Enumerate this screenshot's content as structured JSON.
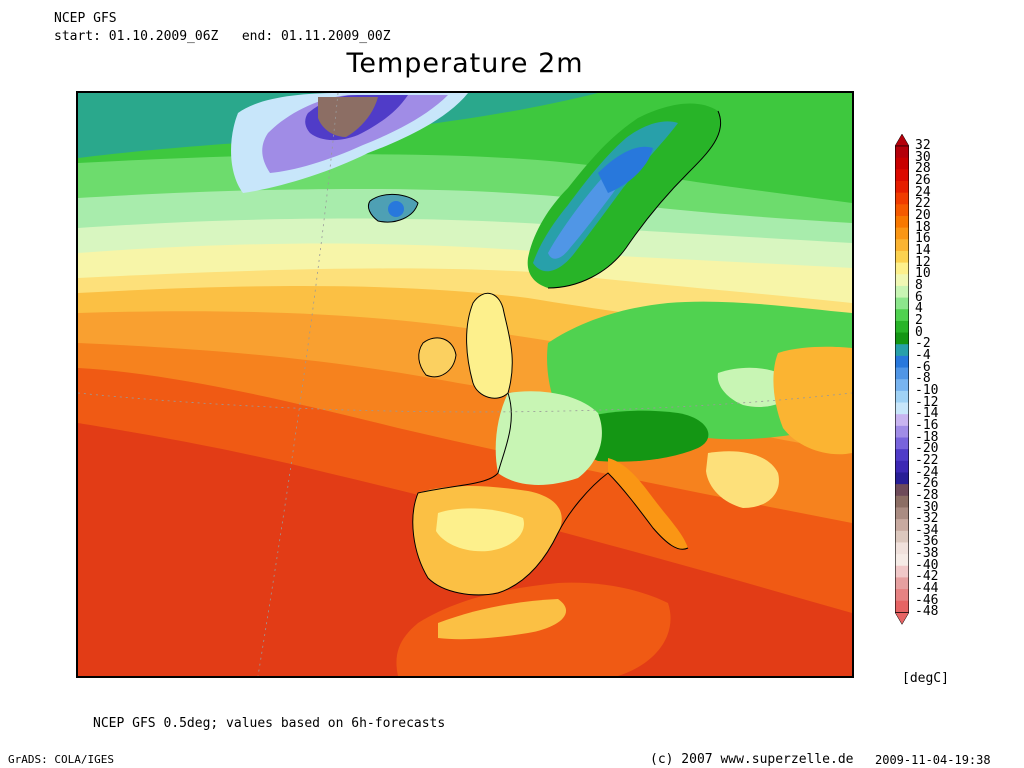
{
  "header": {
    "line1": "NCEP GFS",
    "line2": "start: 01.10.2009_06Z   end: 01.11.2009_00Z"
  },
  "title": "Temperature 2m",
  "legend": {
    "unit": "[degC]",
    "labels": [
      "32",
      "30",
      "28",
      "26",
      "24",
      "22",
      "20",
      "18",
      "16",
      "14",
      "12",
      "10",
      "8",
      "6",
      "4",
      "2",
      "0",
      "-2",
      "-4",
      "-6",
      "-8",
      "-10",
      "-12",
      "-14",
      "-16",
      "-18",
      "-20",
      "-22",
      "-24",
      "-26",
      "-28",
      "-30",
      "-32",
      "-34",
      "-36",
      "-38",
      "-40",
      "-42",
      "-44",
      "-46",
      "-48"
    ],
    "colors": [
      "#b4000a",
      "#c80000",
      "#dc0a00",
      "#e61e00",
      "#f03c00",
      "#f55a00",
      "#f87800",
      "#fa9614",
      "#fbb432",
      "#fcd250",
      "#fdf08c",
      "#f0f8b4",
      "#c8f5b4",
      "#8ce68c",
      "#50d250",
      "#28b428",
      "#149614",
      "#28a0aa",
      "#2878dc",
      "#5096e6",
      "#78b4f0",
      "#a0d2f5",
      "#c8e6fa",
      "#c8b4f0",
      "#a08ce6",
      "#7864dc",
      "#503cc8",
      "#3c28b4",
      "#281e96",
      "#6e4b5a",
      "#8c6e64",
      "#aa8c82",
      "#c8aaa0",
      "#dcc8be",
      "#f0e1dc",
      "#f5ebe6",
      "#f0c8c8",
      "#e6a0a0",
      "#e68282",
      "#e66464"
    ]
  },
  "footer": {
    "note": "NCEP GFS 0.5deg; values based on 6h-forecasts",
    "software": "GrADS: COLA/IGES",
    "copyright": "(c) 2007 www.superzelle.de",
    "timestamp": "2009-11-04-19:38"
  }
}
